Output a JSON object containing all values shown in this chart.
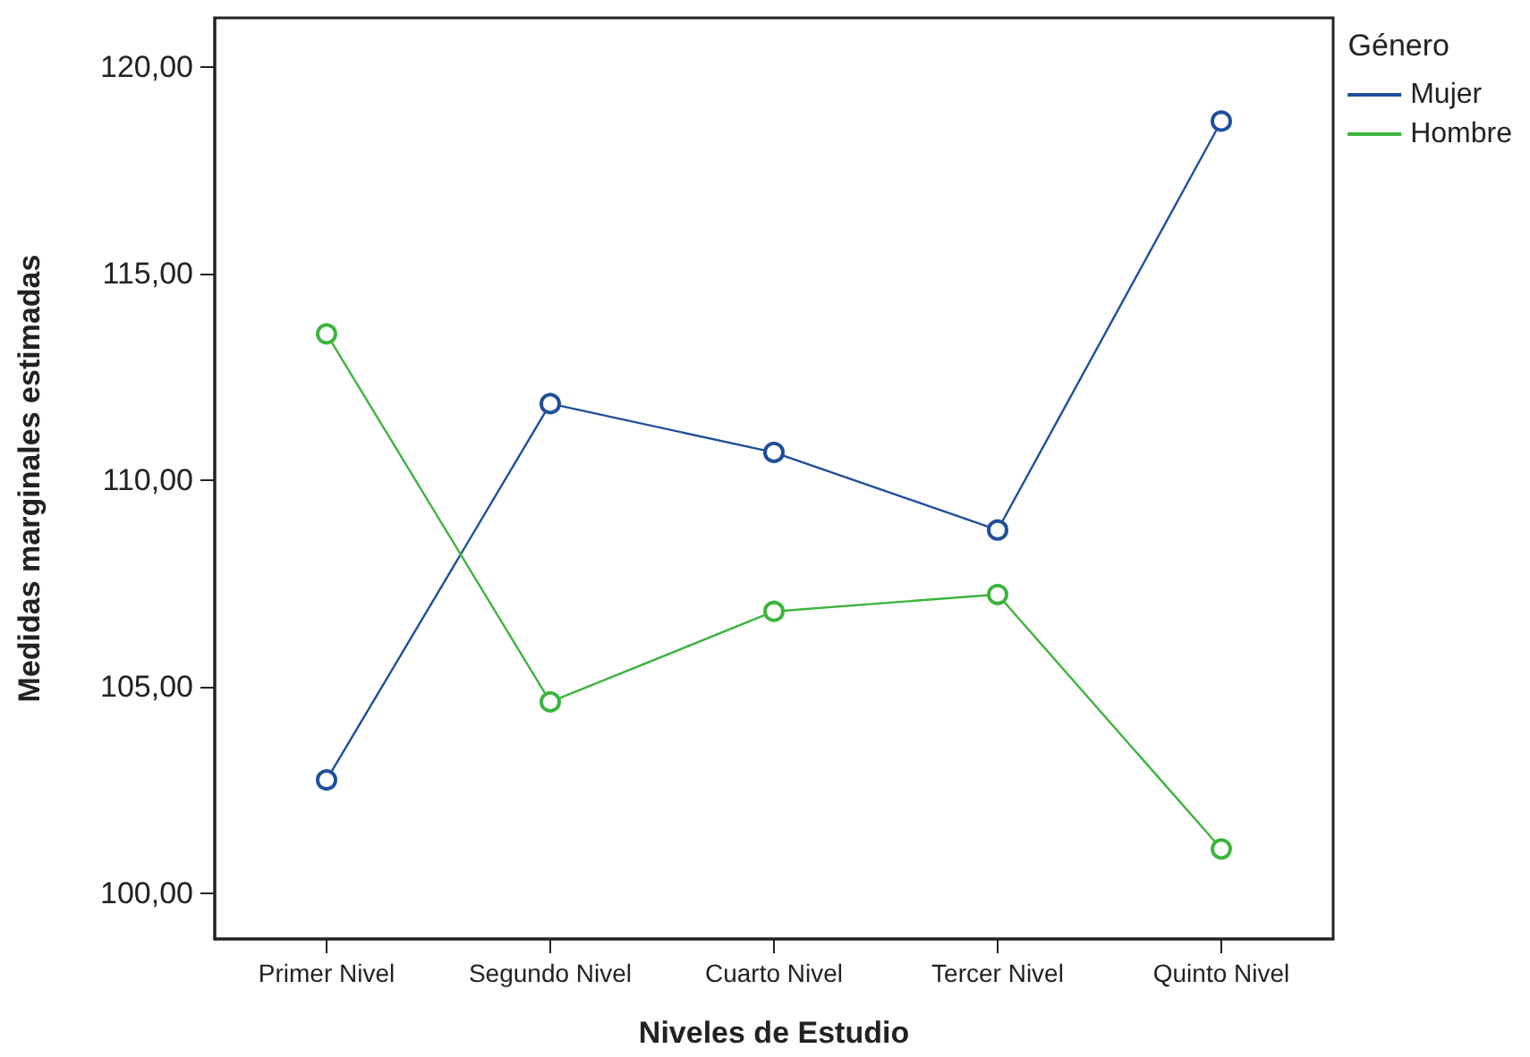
{
  "chart_data": {
    "type": "line",
    "xlabel": "Niveles de Estudio",
    "ylabel": "Medidas marginales estimadas",
    "legend_title": "Género",
    "categories": [
      "Primer Nivel",
      "Segundo Nivel",
      "Cuarto Nivel",
      "Tercer Nivel",
      "Quinto Nivel"
    ],
    "series": [
      {
        "name": "Mujer",
        "color": "#1f4e9c",
        "values": [
          102.75,
          111.86,
          110.68,
          108.8,
          118.7
        ]
      },
      {
        "name": "Hombre",
        "color": "#3cb43c",
        "values": [
          113.55,
          104.64,
          106.83,
          107.24,
          101.08
        ]
      }
    ],
    "ylim": [
      98.9,
      121.2
    ],
    "yticks": [
      {
        "value": 100,
        "label": "100,00"
      },
      {
        "value": 105,
        "label": "105,00"
      },
      {
        "value": 110,
        "label": "110,00"
      },
      {
        "value": 115,
        "label": "115,00"
      },
      {
        "value": 120,
        "label": "120,00"
      }
    ],
    "grid": false,
    "legend": "top right",
    "marker": "circle",
    "line_style": "solid"
  }
}
